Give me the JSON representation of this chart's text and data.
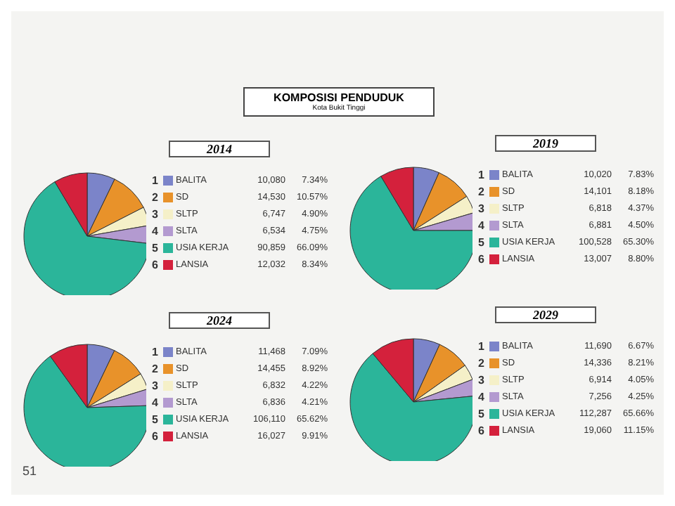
{
  "chart_data": [
    {
      "type": "pie",
      "title": "KOMPOSISI PENDUDUK",
      "subtitle": "Kota Bukit Tinggi",
      "legend_title": "2014",
      "categories": [
        "BALITA",
        "SD",
        "SLTP",
        "SLTA",
        "USIA KERJA",
        "LANSIA"
      ],
      "values": [
        10080,
        14530,
        6747,
        6534,
        90859,
        12032
      ],
      "value_labels": [
        "10,080",
        "14,530",
        "6,747",
        "6,534",
        "90,859",
        "12,032"
      ],
      "colors": [
        "#7b84c9",
        "#e8922a",
        "#f5f0c8",
        "#b39ad0",
        "#2bb59a",
        "#d4213c"
      ],
      "legend": "right",
      "annotations": [
        "1",
        "2",
        "3",
        "4",
        "5",
        "6",
        "7.34%",
        "10.57%",
        "4.90%",
        "4.75%",
        "66.09%",
        "8.34%",
        "51"
      ]
    },
    {
      "type": "pie",
      "legend_title": "2019",
      "categories": [
        "BALITA",
        "SD",
        "SLTP",
        "SLTA",
        "USIA KERJA",
        "LANSIA"
      ],
      "values": [
        10020,
        14101,
        6818,
        6881,
        100528,
        13007
      ],
      "value_labels": [
        "10,020",
        "14,101",
        "6,818",
        "6,881",
        "100,528",
        "13,007"
      ],
      "colors": [
        "#7b84c9",
        "#e8922a",
        "#f5f0c8",
        "#b39ad0",
        "#2bb59a",
        "#d4213c"
      ],
      "legend": "right",
      "annotations": [
        "1",
        "2",
        "3",
        "4",
        "5",
        "6",
        "7.83%",
        "8.18%",
        "4.37%",
        "4.50%",
        "65.30%",
        "8.80%"
      ]
    },
    {
      "type": "pie",
      "legend_title": "2024",
      "categories": [
        "BALITA",
        "SD",
        "SLTP",
        "SLTA",
        "USIA KERJA",
        "LANSIA"
      ],
      "values": [
        11468,
        14455,
        6832,
        6836,
        106110,
        16027
      ],
      "value_labels": [
        "11,468",
        "14,455",
        "6,832",
        "6,836",
        "106,110",
        "16,027"
      ],
      "colors": [
        "#7b84c9",
        "#e8922a",
        "#f5f0c8",
        "#b39ad0",
        "#2bb59a",
        "#d4213c"
      ],
      "legend": "right",
      "annotations": [
        "1",
        "2",
        "3",
        "4",
        "5",
        "6",
        "7.09%",
        "8.92%",
        "4.22%",
        "4.21%",
        "65.62%",
        "9.91%"
      ]
    },
    {
      "type": "pie",
      "legend_title": "2029",
      "categories": [
        "BALITA",
        "SD",
        "SLTP",
        "SLTA",
        "USIA KERJA",
        "LANSIA"
      ],
      "values": [
        11690,
        14336,
        6914,
        7256,
        112287,
        19060
      ],
      "value_labels": [
        "11,690",
        "14,336",
        "6,914",
        "7,256",
        "112,287",
        "19,060"
      ],
      "colors": [
        "#7b84c9",
        "#e8922a",
        "#f5f0c8",
        "#b39ad0",
        "#2bb59a",
        "#d4213c"
      ],
      "legend": "right",
      "annotations": [
        "1",
        "2",
        "3",
        "4",
        "5",
        "6",
        "6.67%",
        "8.21%",
        "4.05%",
        "4.25%",
        "65.66%",
        "11.15%"
      ]
    }
  ]
}
